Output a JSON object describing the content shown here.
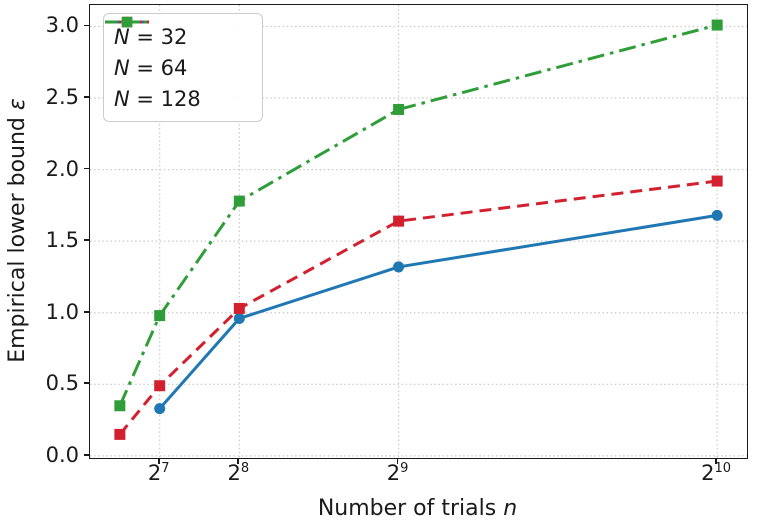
{
  "figure": {
    "background": "#ffffff",
    "text_color": "#1a1a1a",
    "spine_color": "#1a1a1a",
    "grid_color": "#c9c9c9"
  },
  "chart_data": {
    "type": "line",
    "title": "",
    "xlabel": {
      "text": "Number of trials",
      "math_suffix": "n"
    },
    "ylabel": {
      "text": "Empirical lower bound",
      "math_suffix": "ε"
    },
    "x_scale": "linear",
    "xlim": [
      16,
      1072
    ],
    "ylim": [
      -0.015,
      3.15
    ],
    "grid": "dotted, at all ticks, both axes",
    "legend_position": "upper left",
    "x_ticks": [
      {
        "value": 128,
        "label": "2^7"
      },
      {
        "value": 256,
        "label": "2^8"
      },
      {
        "value": 512,
        "label": "2^9"
      },
      {
        "value": 1024,
        "label": "2^10"
      }
    ],
    "y_ticks": [
      {
        "value": 0.0,
        "label": "0.0"
      },
      {
        "value": 0.5,
        "label": "0.5"
      },
      {
        "value": 1.0,
        "label": "1.0"
      },
      {
        "value": 1.5,
        "label": "1.5"
      },
      {
        "value": 2.0,
        "label": "2.0"
      },
      {
        "value": 2.5,
        "label": "2.5"
      },
      {
        "value": 3.0,
        "label": "3.0"
      }
    ],
    "series": [
      {
        "name_var": "N",
        "name_rest": " = 32",
        "color": "#1f77b4",
        "linestyle": "solid",
        "marker": "circle",
        "x": [
          128,
          256,
          512,
          1024
        ],
        "y": [
          0.33,
          0.96,
          1.32,
          1.68
        ]
      },
      {
        "name_var": "N",
        "name_rest": " = 64",
        "color": "#d2202f",
        "linestyle": "dashed",
        "marker": "square",
        "x": [
          64,
          128,
          256,
          512,
          1024
        ],
        "y": [
          0.15,
          0.49,
          1.03,
          1.64,
          1.92
        ]
      },
      {
        "name_var": "N",
        "name_rest": " = 128",
        "color": "#2f9e38",
        "linestyle": "dashdot",
        "marker": "square",
        "x": [
          64,
          128,
          256,
          512,
          1024
        ],
        "y": [
          0.35,
          0.98,
          1.78,
          2.42,
          3.01
        ]
      }
    ]
  }
}
